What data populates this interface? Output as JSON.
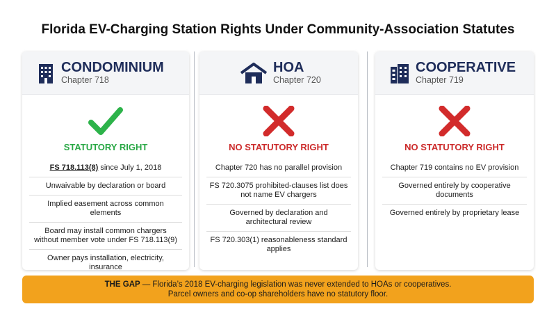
{
  "header": {
    "title": "Florida EV-Charging Station Rights Under Community-Association Statutes"
  },
  "columns": [
    {
      "name": "CONDOMINIUM",
      "chapter": "Chapter 718",
      "status": "STATUTORY RIGHT",
      "items": [
        {
          "emphasis": "FS 718.113(8)",
          "text": "since July 1, 2018"
        },
        "Unwaivable by declaration or board",
        "Implied easement across common elements",
        "Board may install common chargers without member vote under FS 718.113(9)",
        "Owner pays installation, electricity, insurance"
      ]
    },
    {
      "name": "HOA",
      "chapter": "Chapter 720",
      "status": "NO STATUTORY RIGHT",
      "items": [
        "Chapter 720 has no parallel provision",
        "FS 720.3075 prohibited-clauses list does not name EV chargers",
        "Governed by declaration and architectural review",
        "FS 720.303(1) reasonableness standard applies"
      ]
    },
    {
      "name": "COOPERATIVE",
      "chapter": "Chapter 719",
      "status": "NO STATUTORY RIGHT",
      "items": [
        "Chapter 719 contains no EV provision",
        "Governed entirely by cooperative documents",
        "Governed entirely by proprietary lease"
      ]
    }
  ],
  "banner": {
    "label": "THE GAP",
    "line1": "— Florida’s 2018 EV-charging legislation was never extended to HOAs or cooperatives.",
    "line2": "Parcel owners and co-op shareholders have no statutory floor."
  }
}
